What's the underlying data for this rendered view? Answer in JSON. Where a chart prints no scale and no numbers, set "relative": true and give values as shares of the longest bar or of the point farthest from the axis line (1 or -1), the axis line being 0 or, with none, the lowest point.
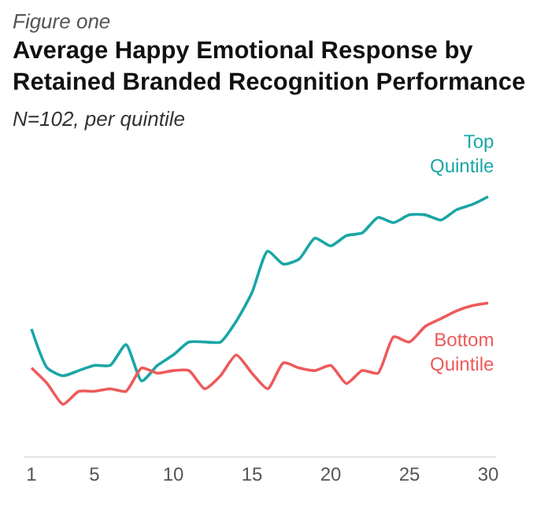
{
  "chart_data": {
    "type": "line",
    "title": "Average Happy Emotional Response by\nRetained Branded Recognition Performance",
    "subtitle": "N=102, per quintile",
    "annotations": [
      "Figure one"
    ],
    "relative": true,
    "tick_labels": "x",
    "x": [
      1,
      2,
      3,
      4,
      5,
      6,
      7,
      8,
      9,
      10,
      11,
      12,
      13,
      14,
      15,
      16,
      17,
      18,
      19,
      20,
      21,
      22,
      23,
      24,
      25,
      26,
      27,
      28,
      29,
      30
    ],
    "xlim": [
      0.5,
      30.5
    ],
    "xticks": [
      1,
      5,
      10,
      15,
      20,
      25,
      30
    ],
    "series": [
      {
        "name": "Top\nQuintile",
        "color": "#1aa6a6",
        "values": [
          0.49,
          0.34,
          0.31,
          0.33,
          0.35,
          0.35,
          0.43,
          0.29,
          0.35,
          0.39,
          0.44,
          0.44,
          0.44,
          0.52,
          0.63,
          0.79,
          0.74,
          0.76,
          0.84,
          0.81,
          0.85,
          0.86,
          0.92,
          0.9,
          0.93,
          0.93,
          0.91,
          0.95,
          0.97,
          1
        ]
      },
      {
        "name": "Bottom\nQuintile",
        "color": "#ee5a5a",
        "values": [
          0.34,
          0.28,
          0.2,
          0.25,
          0.25,
          0.26,
          0.25,
          0.34,
          0.32,
          0.33,
          0.33,
          0.26,
          0.31,
          0.39,
          0.32,
          0.26,
          0.36,
          0.34,
          0.33,
          0.35,
          0.28,
          0.33,
          0.32,
          0.46,
          0.44,
          0.5,
          0.53,
          0.56,
          0.58,
          0.59
        ]
      }
    ]
  }
}
